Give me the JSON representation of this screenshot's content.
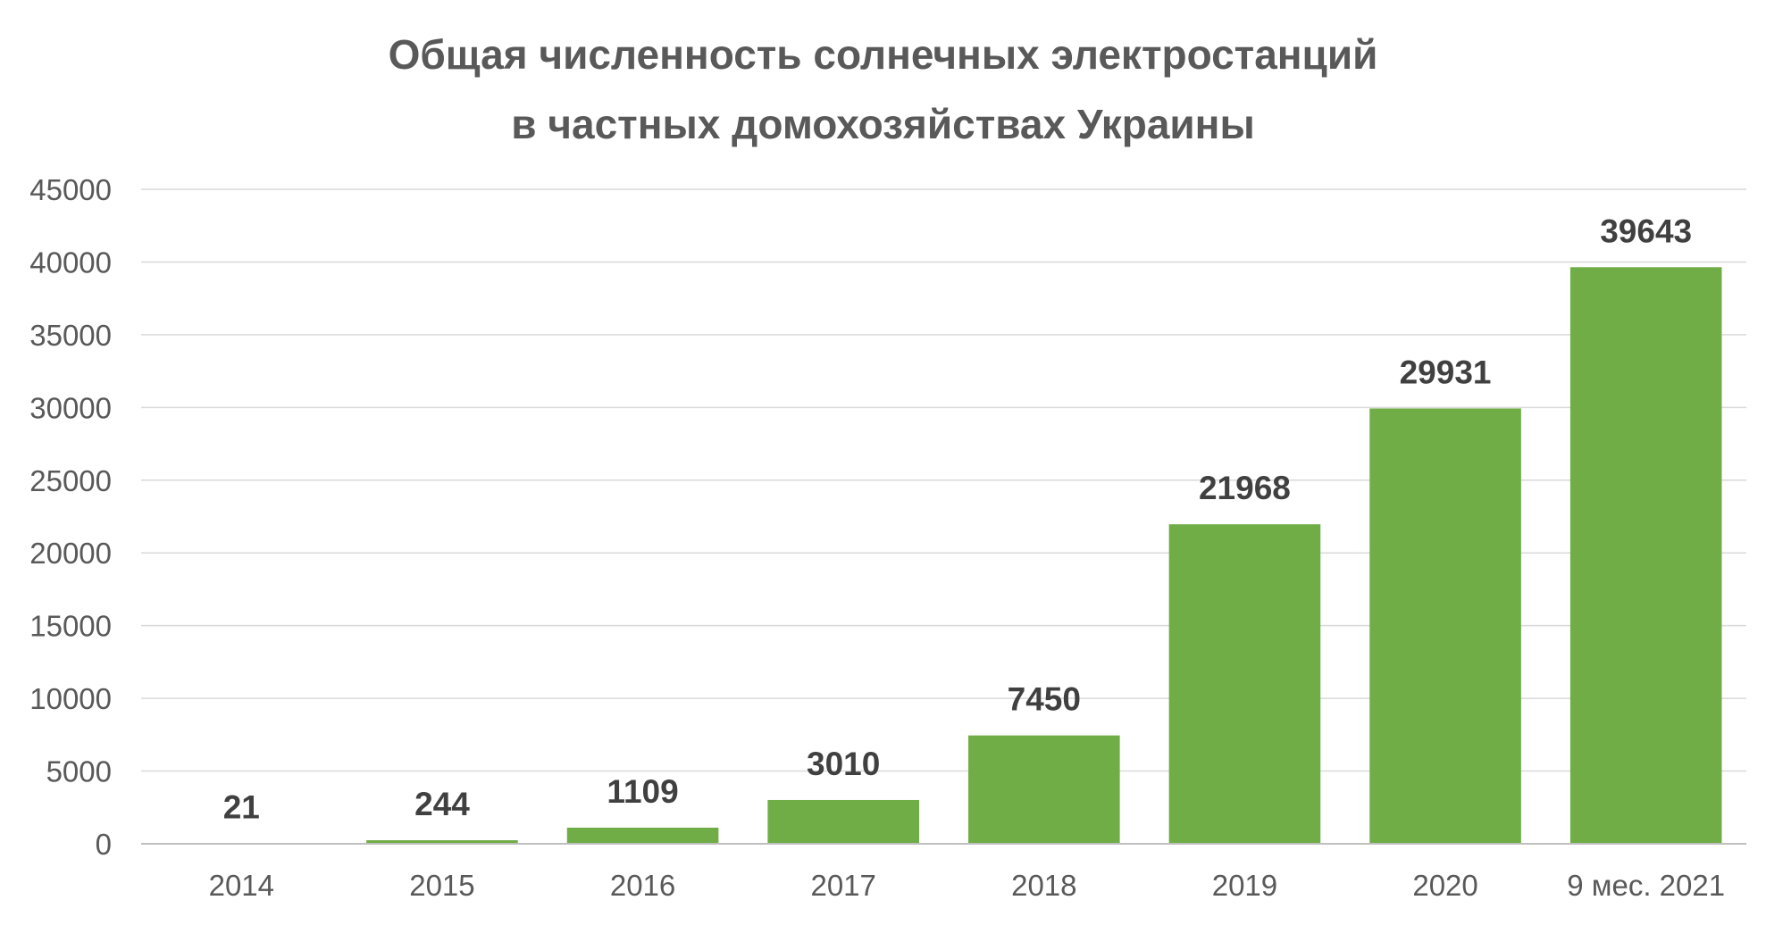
{
  "chart_data": {
    "type": "bar",
    "title_lines": [
      "Общая численность солнечных электростанций",
      "в частных домохозяйствах Украины"
    ],
    "categories": [
      "2014",
      "2015",
      "2016",
      "2017",
      "2018",
      "2019",
      "2020",
      "9 мес. 2021"
    ],
    "values": [
      21,
      244,
      1109,
      3010,
      7450,
      21968,
      29931,
      39643
    ],
    "data_labels": [
      "21",
      "244",
      "1109",
      "3010",
      "7450",
      "21968",
      "29931",
      "39643"
    ],
    "yticks": [
      0,
      5000,
      10000,
      15000,
      20000,
      25000,
      30000,
      35000,
      40000,
      45000
    ],
    "ylim": [
      0,
      45000
    ],
    "grid": true,
    "legend": "none",
    "bar_color": "#70ad47",
    "grid_color": "#d9d9d9",
    "axis_color": "#bfbfbf"
  }
}
